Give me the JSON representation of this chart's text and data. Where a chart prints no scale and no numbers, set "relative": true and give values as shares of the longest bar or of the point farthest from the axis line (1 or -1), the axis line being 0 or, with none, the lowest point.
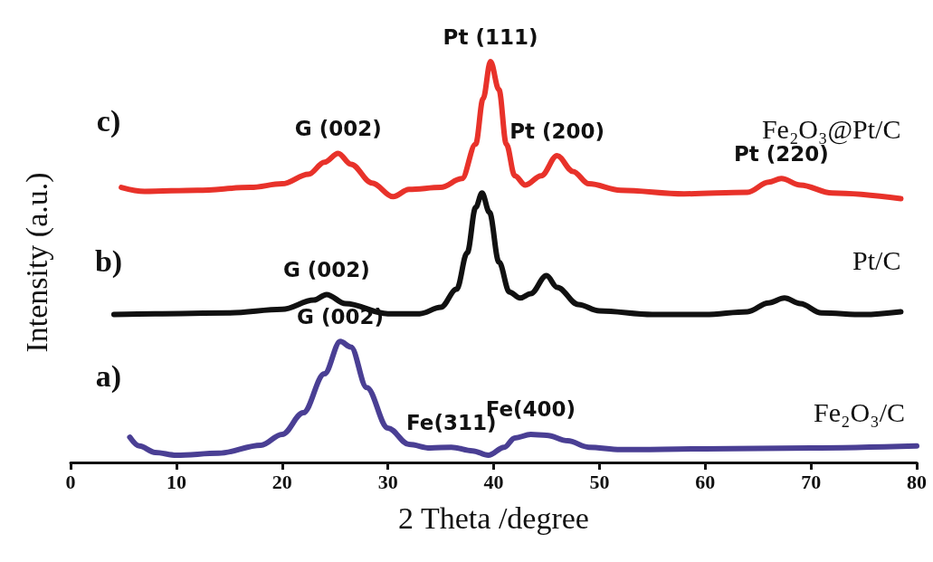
{
  "chart_data": {
    "type": "line",
    "relative": true,
    "xlabel": "2 Theta /degree",
    "ylabel": "Intensity (a.u.)",
    "xlim": [
      0,
      80
    ],
    "xticks": [
      0,
      10,
      20,
      30,
      40,
      50,
      60,
      70,
      80
    ],
    "grid": false,
    "legend": false,
    "marker": "none",
    "line_style": "solid",
    "series": [
      {
        "name": "Fe₂O₃@Pt/C",
        "color": "#e8322a",
        "x": [
          4.8,
          7,
          12,
          17,
          20,
          22.5,
          24,
          25.3,
          26.5,
          28.5,
          30.5,
          32,
          35,
          37,
          38.3,
          39,
          39.7,
          40.5,
          41.2,
          42,
          43,
          44.5,
          46,
          47.5,
          49,
          52,
          58,
          64,
          66,
          67.2,
          69,
          72,
          78.5
        ],
        "values": [
          0.686,
          0.676,
          0.679,
          0.686,
          0.695,
          0.719,
          0.749,
          0.771,
          0.744,
          0.697,
          0.663,
          0.681,
          0.686,
          0.708,
          0.794,
          0.907,
          1.0,
          0.93,
          0.794,
          0.715,
          0.692,
          0.715,
          0.765,
          0.726,
          0.695,
          0.679,
          0.67,
          0.674,
          0.699,
          0.708,
          0.692,
          0.672,
          0.658
        ]
      },
      {
        "name": "Pt/C",
        "color": "#111111",
        "x": [
          4.1,
          8,
          15,
          20,
          23,
          24.2,
          26,
          30,
          33,
          35,
          36.5,
          37.5,
          38.3,
          38.9,
          39.6,
          40.5,
          41.5,
          42.5,
          43.5,
          45,
          46,
          48,
          50,
          55,
          60,
          64,
          66,
          67.5,
          69,
          71,
          75,
          78.5
        ],
        "values": [
          0.369,
          0.371,
          0.373,
          0.382,
          0.405,
          0.419,
          0.396,
          0.371,
          0.371,
          0.387,
          0.432,
          0.523,
          0.636,
          0.672,
          0.624,
          0.5,
          0.425,
          0.41,
          0.421,
          0.466,
          0.437,
          0.394,
          0.378,
          0.369,
          0.369,
          0.376,
          0.398,
          0.41,
          0.396,
          0.373,
          0.369,
          0.376
        ]
      },
      {
        "name": "Fe₂O₃/C",
        "color": "#4a3f94",
        "x": [
          5.6,
          6.5,
          8,
          10,
          14,
          18,
          20,
          22,
          24,
          25.5,
          26.5,
          28,
          30,
          32,
          34,
          36,
          38,
          39.5,
          41,
          42,
          43.5,
          45,
          47,
          49,
          52,
          60,
          70,
          80
        ],
        "values": [
          0.063,
          0.041,
          0.025,
          0.018,
          0.023,
          0.043,
          0.07,
          0.124,
          0.221,
          0.302,
          0.288,
          0.187,
          0.086,
          0.045,
          0.036,
          0.038,
          0.029,
          0.018,
          0.038,
          0.061,
          0.07,
          0.068,
          0.054,
          0.038,
          0.032,
          0.034,
          0.036,
          0.041
        ]
      }
    ],
    "annotations": [
      {
        "text": "G (002)",
        "x": 25.3,
        "y": 0.771
      },
      {
        "text": "Pt (111)",
        "x": 39.7,
        "y": 1.0
      },
      {
        "text": "Pt (200)",
        "x": 46,
        "y": 0.765
      },
      {
        "text": "Pt (220)",
        "x": 67.2,
        "y": 0.708
      },
      {
        "text": "G (002)",
        "x": 24.2,
        "y": 0.419
      },
      {
        "text": "G (002)",
        "x": 25.5,
        "y": 0.302
      },
      {
        "text": "Fe(311)",
        "x": 36,
        "y": 0.038
      },
      {
        "text": "Fe(400)",
        "x": 43.5,
        "y": 0.07
      },
      "c)",
      "b)",
      "a)"
    ]
  }
}
